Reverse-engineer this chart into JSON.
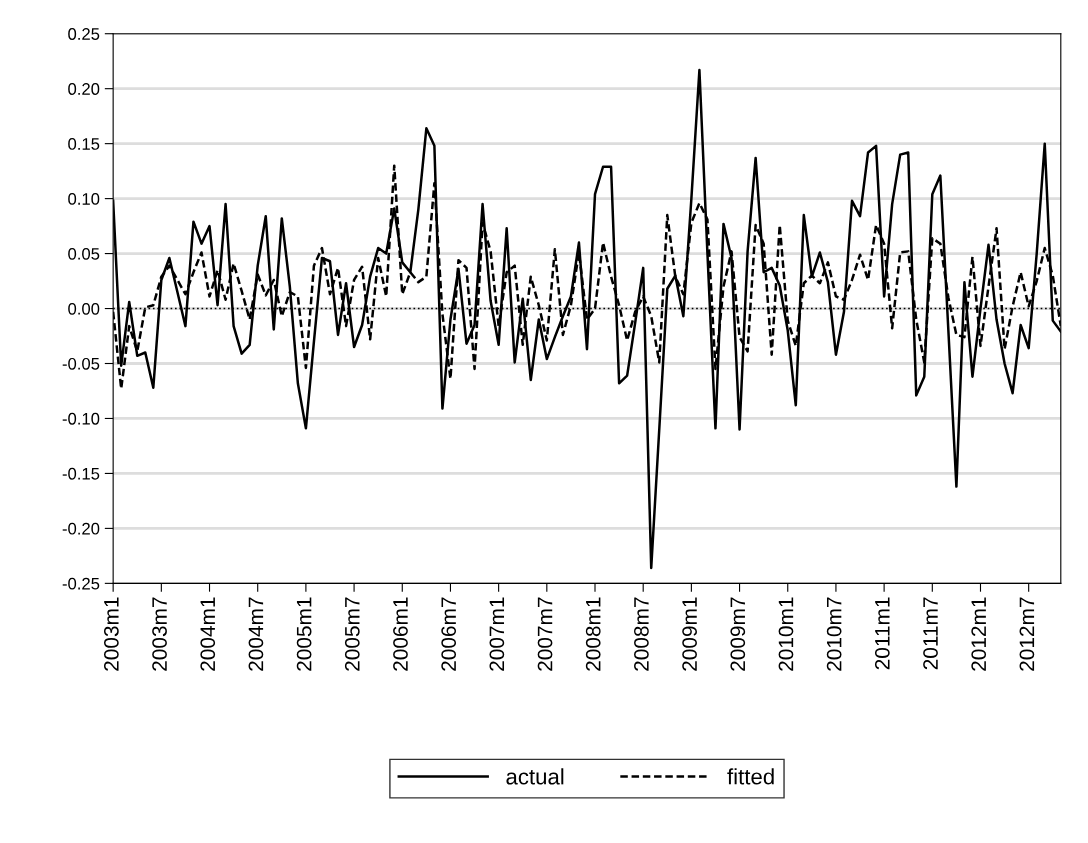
{
  "chart_data": {
    "type": "line",
    "categories": [
      "2003m1",
      null,
      null,
      null,
      null,
      null,
      "2003m7",
      null,
      null,
      null,
      null,
      null,
      "2004m1",
      null,
      null,
      null,
      null,
      null,
      "2004m7",
      null,
      null,
      null,
      null,
      null,
      "2005m1",
      null,
      null,
      null,
      null,
      null,
      "2005m7",
      null,
      null,
      null,
      null,
      null,
      "2006m1",
      null,
      null,
      null,
      null,
      null,
      "2006m7",
      null,
      null,
      null,
      null,
      null,
      "2007m1",
      null,
      null,
      null,
      null,
      null,
      "2007m7",
      null,
      null,
      null,
      null,
      null,
      "2008m1",
      null,
      null,
      null,
      null,
      null,
      "2008m7",
      null,
      null,
      null,
      null,
      null,
      "2009m1",
      null,
      null,
      null,
      null,
      null,
      "2009m7",
      null,
      null,
      null,
      null,
      null,
      "2010m1",
      null,
      null,
      null,
      null,
      null,
      "2010m7",
      null,
      null,
      null,
      null,
      null,
      "2011m1",
      null,
      null,
      null,
      null,
      null,
      "2011m7",
      null,
      null,
      null,
      null,
      null,
      "2012m1",
      null,
      null,
      null,
      null,
      null,
      "2012m7",
      null,
      null,
      null,
      null
    ],
    "series": [
      {
        "name": "actual",
        "color": "#000000",
        "line_style": "solid",
        "values": [
          0.098,
          -0.052,
          0.006,
          -0.043,
          -0.04,
          -0.072,
          0.026,
          0.046,
          0.015,
          -0.016,
          0.079,
          0.059,
          0.075,
          0.003,
          0.095,
          -0.016,
          -0.041,
          -0.033,
          0.039,
          0.084,
          -0.019,
          0.082,
          0.02,
          -0.068,
          -0.109,
          -0.03,
          0.046,
          0.043,
          -0.024,
          0.023,
          -0.035,
          -0.015,
          0.029,
          0.055,
          0.05,
          0.091,
          0.042,
          0.033,
          0.09,
          0.164,
          0.148,
          -0.091,
          -0.01,
          0.036,
          -0.032,
          -0.015,
          0.095,
          0.007,
          -0.033,
          0.073,
          -0.049,
          0.009,
          -0.065,
          -0.01,
          -0.046,
          -0.026,
          -0.007,
          0.011,
          0.06,
          -0.037,
          0.104,
          0.129,
          0.129,
          -0.068,
          -0.061,
          -0.013,
          0.037,
          -0.236,
          -0.11,
          0.018,
          0.03,
          -0.007,
          0.1,
          0.217,
          0.05,
          -0.109,
          0.077,
          0.046,
          -0.11,
          0.052,
          0.137,
          0.033,
          0.037,
          0.021,
          -0.02,
          -0.088,
          0.085,
          0.029,
          0.051,
          0.024,
          -0.042,
          -0.003,
          0.098,
          0.084,
          0.142,
          0.148,
          0.011,
          0.095,
          0.14,
          0.142,
          -0.079,
          -0.062,
          0.104,
          0.121,
          -0.02,
          -0.162,
          0.024,
          -0.062,
          0.0,
          0.058,
          -0.01,
          -0.05,
          -0.077,
          -0.015,
          -0.036,
          0.05,
          0.15,
          -0.011,
          -0.021
        ]
      },
      {
        "name": "fitted",
        "color": "#000000",
        "line_style": "dashed",
        "values": [
          -0.003,
          -0.073,
          -0.016,
          -0.039,
          0.001,
          0.003,
          0.029,
          0.039,
          0.026,
          0.013,
          0.033,
          0.051,
          0.011,
          0.035,
          0.008,
          0.041,
          0.016,
          -0.01,
          0.031,
          0.012,
          0.026,
          -0.007,
          0.015,
          0.011,
          -0.054,
          0.039,
          0.055,
          0.013,
          0.037,
          -0.016,
          0.026,
          0.038,
          -0.028,
          0.046,
          0.011,
          0.13,
          0.013,
          0.033,
          0.024,
          0.029,
          0.114,
          -0.005,
          -0.064,
          0.044,
          0.037,
          -0.055,
          0.078,
          0.052,
          -0.016,
          0.033,
          0.039,
          -0.033,
          0.029,
          0.003,
          -0.029,
          0.054,
          -0.024,
          0.003,
          0.051,
          -0.01,
          0.0,
          0.06,
          0.029,
          0.003,
          -0.029,
          -0.003,
          0.011,
          -0.007,
          -0.049,
          0.085,
          0.029,
          0.013,
          0.078,
          0.096,
          0.081,
          -0.055,
          0.02,
          0.052,
          -0.026,
          -0.039,
          0.076,
          0.059,
          -0.042,
          0.076,
          -0.011,
          -0.034,
          0.023,
          0.03,
          0.023,
          0.042,
          0.011,
          0.008,
          0.026,
          0.049,
          0.026,
          0.076,
          0.059,
          -0.018,
          0.051,
          0.052,
          -0.01,
          -0.049,
          0.064,
          0.059,
          0.01,
          -0.024,
          -0.026,
          0.047,
          -0.034,
          0.02,
          0.073,
          -0.037,
          0.002,
          0.033,
          0.002,
          0.025,
          0.055,
          0.03,
          -0.016
        ]
      }
    ],
    "ylim": [
      -0.25,
      0.25
    ],
    "yticks": [
      {
        "value": -0.25,
        "label": "-0.25"
      },
      {
        "value": -0.2,
        "label": "-0.20"
      },
      {
        "value": -0.15,
        "label": "-0.15"
      },
      {
        "value": -0.1,
        "label": "-0.10"
      },
      {
        "value": -0.05,
        "label": "-0.05"
      },
      {
        "value": 0,
        "label": "0.00"
      },
      {
        "value": 0.05,
        "label": "0.05"
      },
      {
        "value": 0.1,
        "label": "0.10"
      },
      {
        "value": 0.15,
        "label": "0.15"
      },
      {
        "value": 0.2,
        "label": "0.20"
      },
      {
        "value": 0.25,
        "label": "0.25"
      }
    ],
    "ref_lines": [
      {
        "axis": "y",
        "value": 0,
        "color": "#000000",
        "line_style": "dotted"
      }
    ],
    "grid": "y",
    "legend": "bottom",
    "marker": "none"
  }
}
